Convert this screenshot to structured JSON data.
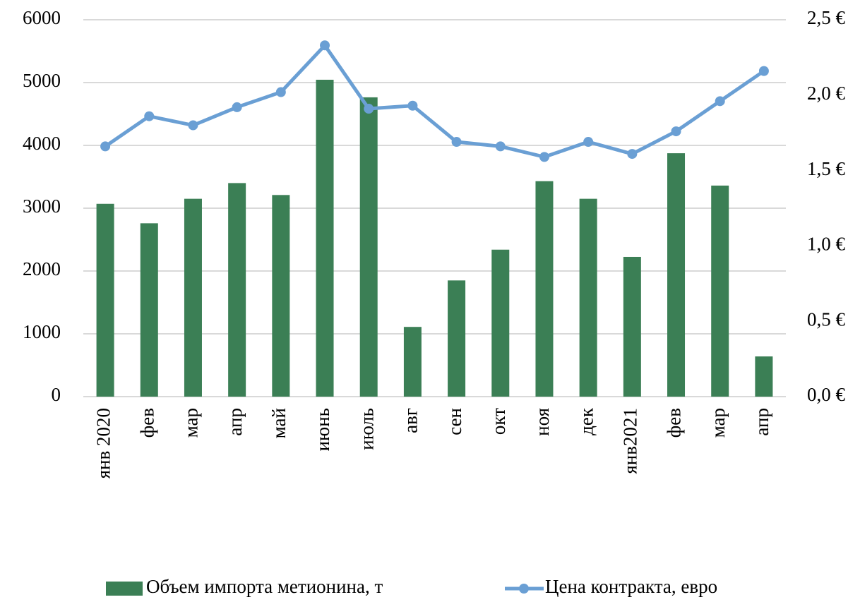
{
  "chart_data": {
    "type": "bar",
    "categories": [
      "янв 2020",
      "фев",
      "мар",
      "апр",
      "май",
      "июнь",
      "июль",
      "авг",
      "сен",
      "окт",
      "ноя",
      "дек",
      "янв2021",
      "фев",
      "мар",
      "апр"
    ],
    "series": [
      {
        "name": "Объем импорта метионина, т",
        "color": "#3b7f55",
        "type": "bar",
        "values": [
          3070,
          2760,
          3150,
          3400,
          3210,
          5045,
          4765,
          1110,
          1850,
          2340,
          3430,
          3150,
          2225,
          3875,
          3360,
          640
        ]
      },
      {
        "name": "Цена контракта, евро",
        "color": "#6a9fd4",
        "type": "line",
        "axis": "y2",
        "values": [
          1.66,
          1.86,
          1.8,
          1.92,
          2.02,
          2.33,
          1.91,
          1.93,
          1.69,
          1.66,
          1.59,
          1.69,
          1.61,
          1.76,
          1.96,
          2.16
        ]
      }
    ],
    "ylim": [
      0,
      6000
    ],
    "yticks": [
      0,
      1000,
      2000,
      3000,
      4000,
      5000,
      6000
    ],
    "y2lim": [
      0,
      2.5
    ],
    "y2ticks": [
      {
        "value": 0,
        "label": "0,0 €"
      },
      {
        "value": 0.5,
        "label": "0,5 €"
      },
      {
        "value": 1,
        "label": "1,0 €"
      },
      {
        "value": 1.5,
        "label": "1,5 €"
      },
      {
        "value": 2,
        "label": "2,0 €"
      },
      {
        "value": 2.5,
        "label": "2,5 €"
      }
    ],
    "grid": true,
    "legend": "bottom"
  }
}
